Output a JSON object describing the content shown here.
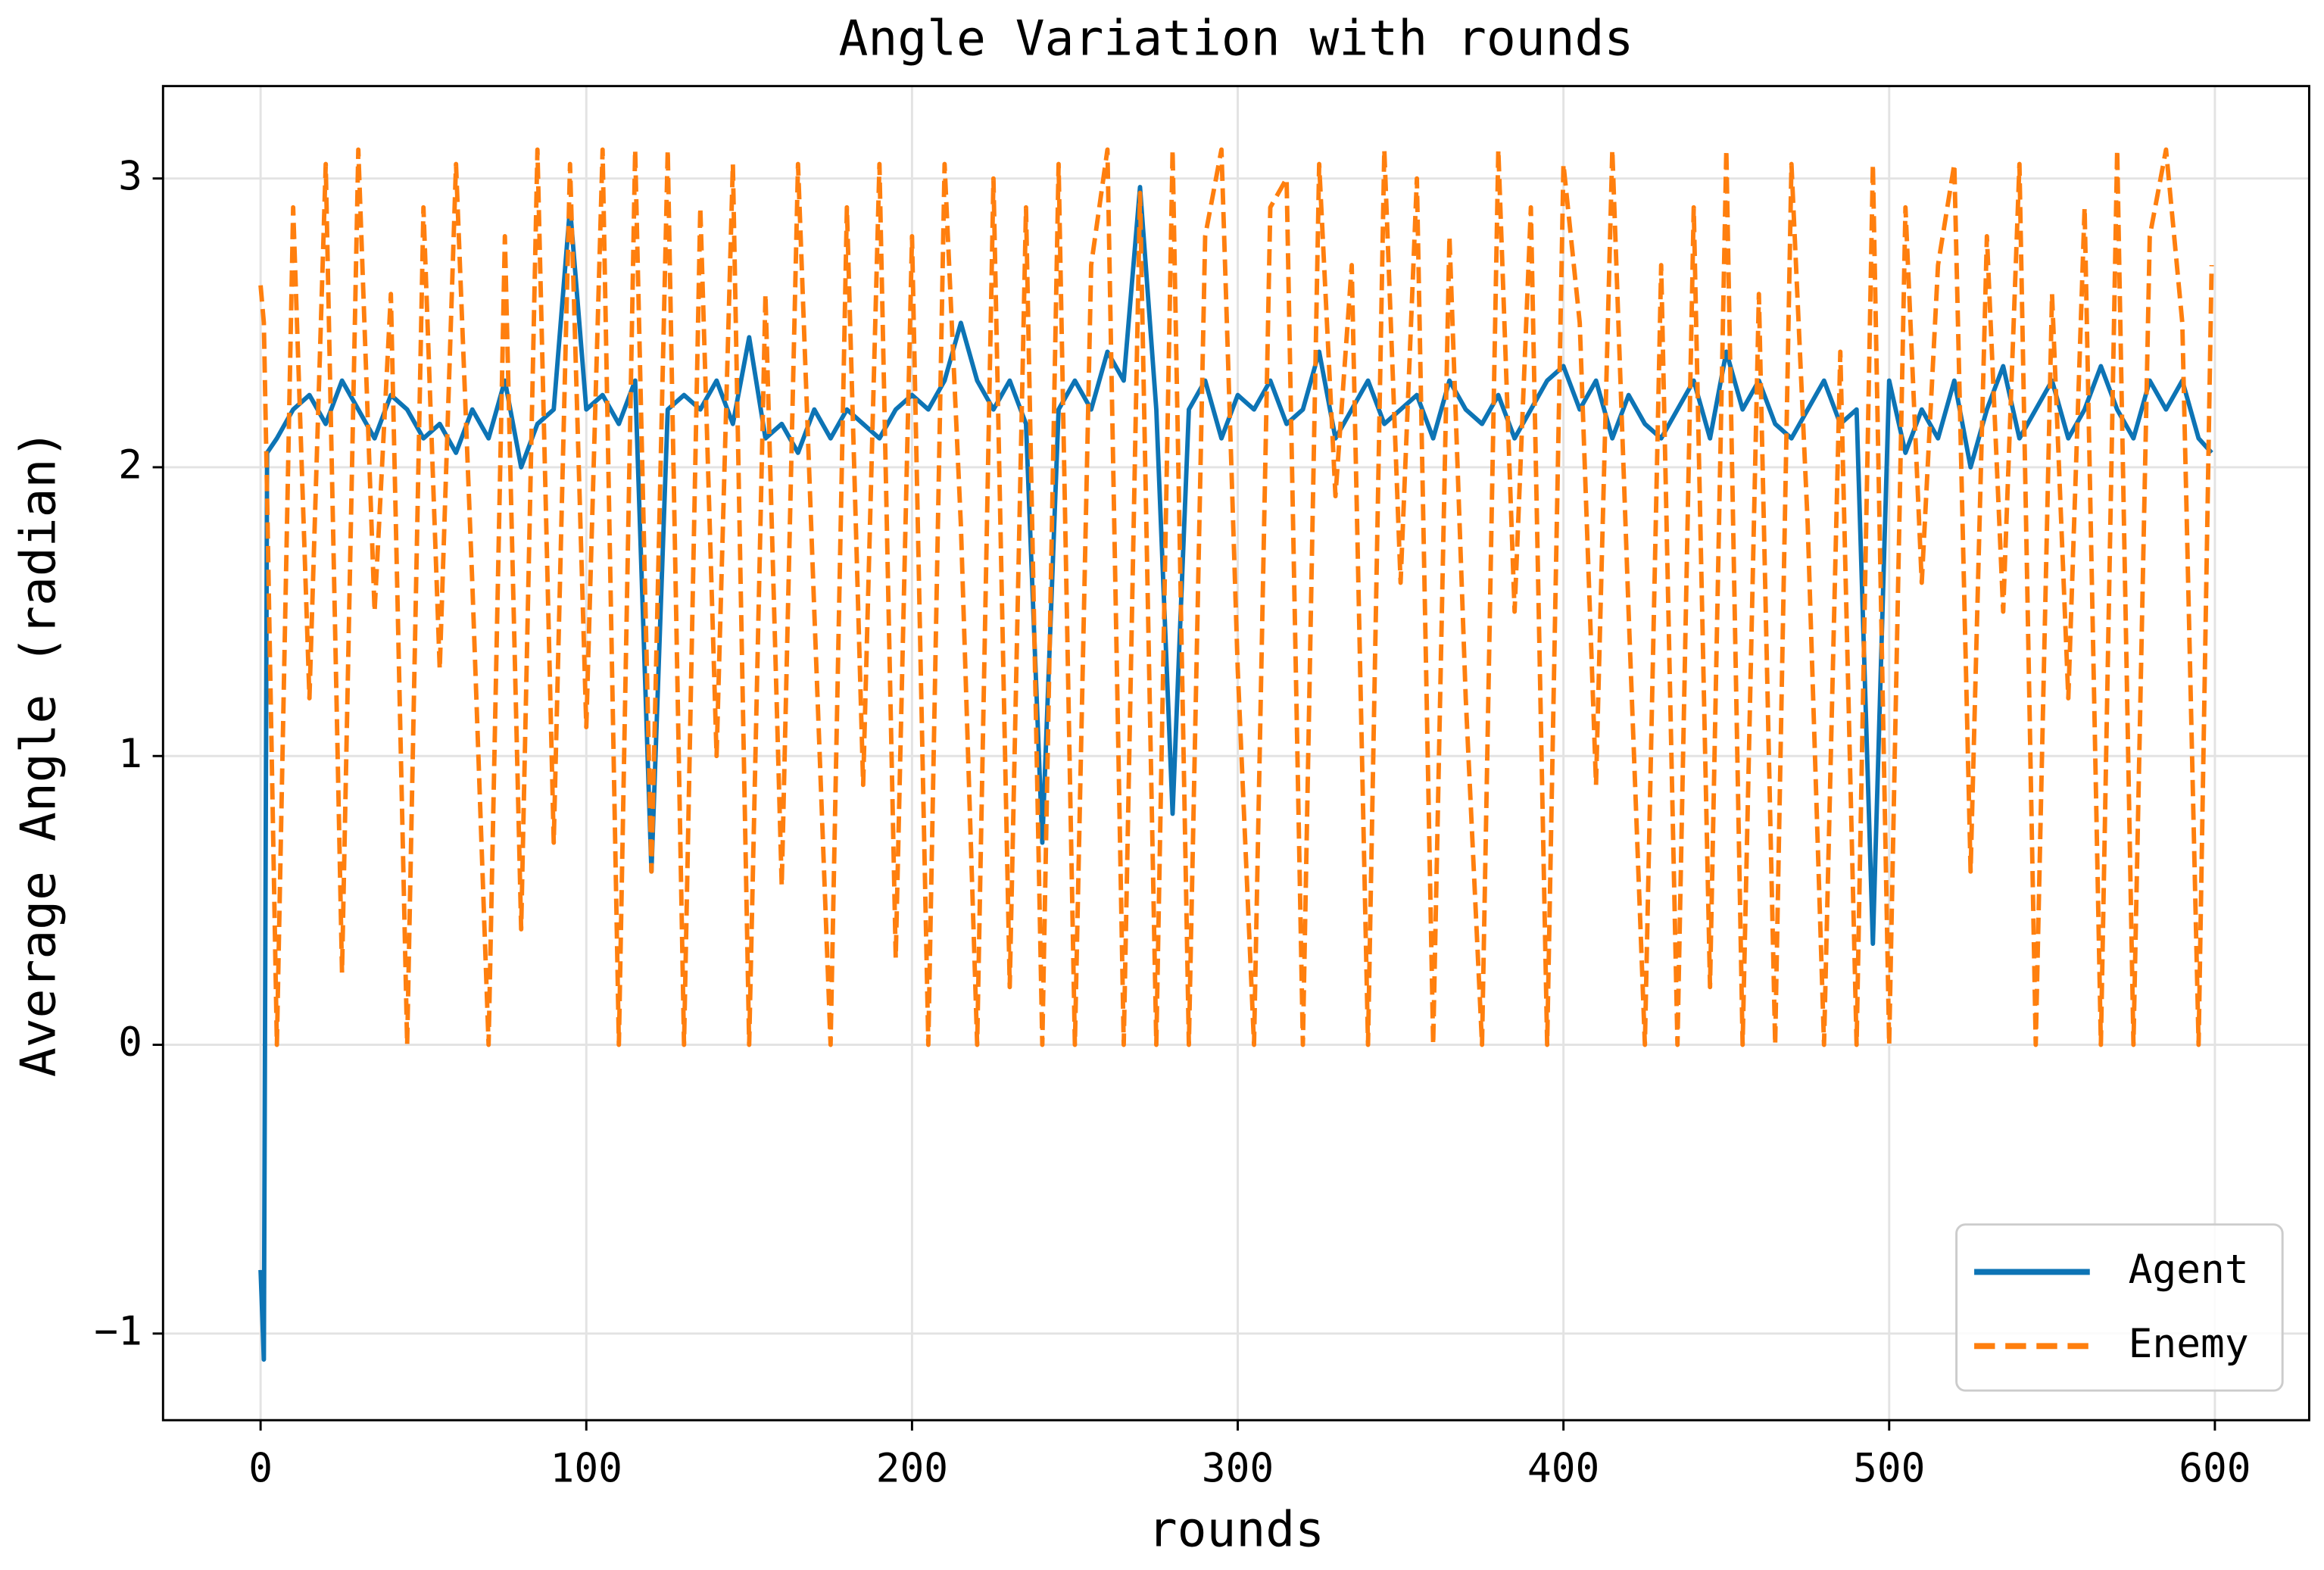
{
  "chart_data": {
    "type": "line",
    "title": "Angle Variation with rounds",
    "xlabel": "rounds",
    "ylabel": "Average Angle (radian)",
    "x": [
      0,
      1,
      2,
      5,
      10,
      15,
      20,
      25,
      30,
      35,
      40,
      45,
      50,
      55,
      60,
      65,
      70,
      75,
      80,
      85,
      90,
      95,
      100,
      105,
      110,
      115,
      120,
      125,
      130,
      135,
      140,
      145,
      150,
      155,
      160,
      165,
      170,
      175,
      180,
      185,
      190,
      195,
      200,
      205,
      210,
      215,
      220,
      225,
      230,
      235,
      240,
      245,
      250,
      255,
      260,
      265,
      270,
      275,
      280,
      285,
      290,
      295,
      300,
      305,
      310,
      315,
      320,
      325,
      330,
      335,
      340,
      345,
      350,
      355,
      360,
      365,
      370,
      375,
      380,
      385,
      390,
      395,
      400,
      405,
      410,
      415,
      420,
      425,
      430,
      435,
      440,
      445,
      450,
      455,
      460,
      465,
      470,
      475,
      480,
      485,
      490,
      495,
      500,
      505,
      510,
      515,
      520,
      525,
      530,
      535,
      540,
      545,
      550,
      555,
      560,
      565,
      570,
      575,
      580,
      585,
      590,
      595,
      599
    ],
    "series": [
      {
        "name": "Agent",
        "color": "#0d74b5",
        "dash": false,
        "values": [
          -0.78,
          -1.09,
          2.05,
          2.1,
          2.2,
          2.25,
          2.15,
          2.3,
          2.2,
          2.1,
          2.25,
          2.2,
          2.1,
          2.15,
          2.05,
          2.2,
          2.1,
          2.3,
          2.0,
          2.15,
          2.2,
          2.9,
          2.2,
          2.25,
          2.15,
          2.3,
          0.6,
          2.2,
          2.25,
          2.2,
          2.3,
          2.15,
          2.45,
          2.1,
          2.15,
          2.05,
          2.2,
          2.1,
          2.2,
          2.15,
          2.1,
          2.2,
          2.25,
          2.2,
          2.3,
          2.5,
          2.3,
          2.2,
          2.3,
          2.15,
          0.7,
          2.2,
          2.3,
          2.2,
          2.4,
          2.3,
          2.97,
          2.2,
          0.8,
          2.2,
          2.3,
          2.1,
          2.25,
          2.2,
          2.3,
          2.15,
          2.2,
          2.4,
          2.1,
          2.2,
          2.3,
          2.15,
          2.2,
          2.25,
          2.1,
          2.3,
          2.2,
          2.15,
          2.25,
          2.1,
          2.2,
          2.3,
          2.35,
          2.2,
          2.3,
          2.1,
          2.25,
          2.15,
          2.1,
          2.2,
          2.3,
          2.1,
          2.4,
          2.2,
          2.3,
          2.15,
          2.1,
          2.2,
          2.3,
          2.15,
          2.2,
          0.35,
          2.3,
          2.05,
          2.2,
          2.1,
          2.3,
          2.0,
          2.2,
          2.35,
          2.1,
          2.2,
          2.3,
          2.1,
          2.2,
          2.35,
          2.2,
          2.1,
          2.3,
          2.2,
          2.3,
          2.1,
          2.05
        ]
      },
      {
        "name": "Enemy",
        "color": "#ff7f0e",
        "dash": true,
        "values": [
          2.63,
          2.5,
          1.9,
          0.0,
          2.9,
          1.2,
          3.05,
          0.25,
          3.1,
          1.5,
          2.6,
          0.0,
          2.9,
          1.3,
          3.05,
          1.6,
          0.0,
          2.8,
          0.4,
          3.1,
          0.7,
          3.05,
          1.1,
          3.1,
          0.0,
          3.1,
          0.6,
          3.1,
          0.0,
          2.9,
          1.0,
          3.05,
          0.0,
          2.6,
          0.55,
          3.05,
          1.5,
          0.0,
          2.9,
          0.9,
          3.05,
          0.3,
          2.8,
          0.0,
          3.05,
          1.8,
          0.0,
          3.0,
          0.2,
          2.9,
          0.0,
          3.05,
          0.0,
          2.7,
          3.1,
          0.0,
          2.95,
          0.0,
          3.1,
          0.0,
          2.8,
          3.1,
          1.3,
          0.0,
          2.9,
          3.0,
          0.0,
          3.05,
          1.9,
          2.7,
          0.0,
          3.1,
          1.6,
          3.0,
          0.0,
          2.8,
          1.2,
          0.0,
          3.1,
          1.5,
          2.9,
          0.0,
          3.05,
          2.5,
          0.9,
          3.1,
          1.5,
          0.0,
          2.7,
          0.0,
          2.9,
          0.2,
          3.1,
          0.0,
          2.6,
          0.0,
          3.05,
          1.8,
          0.0,
          2.4,
          0.0,
          3.05,
          0.0,
          2.9,
          1.6,
          2.7,
          3.05,
          0.6,
          2.8,
          1.5,
          3.05,
          0.0,
          2.6,
          1.2,
          2.9,
          0.0,
          3.1,
          0.0,
          2.8,
          3.1,
          2.5,
          0.0,
          2.7
        ]
      }
    ],
    "xlim": [
      -29.95,
      628.95
    ],
    "ylim": [
      -1.3,
      3.32
    ],
    "xticks": [
      0,
      100,
      200,
      300,
      400,
      500,
      600
    ],
    "yticks": [
      {
        "value": -1,
        "label": "−1"
      },
      0,
      1,
      2,
      3
    ],
    "grid": true,
    "legend": "lower right"
  }
}
